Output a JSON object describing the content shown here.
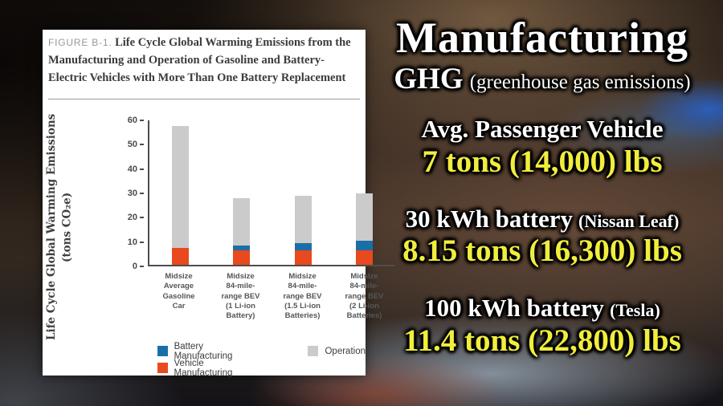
{
  "figure_card": {
    "figure_label": "FIGURE B-1.",
    "title": "Life Cycle Global Warming Emissions from the Manufacturing and Operation of Gasoline and Battery-Electric Vehicles with More Than One Battery Replacement"
  },
  "chart_data": {
    "type": "bar",
    "stacked": true,
    "ylabel_line1": "Life Cycle Global Warming Emissions",
    "ylabel_line2": "(tons CO₂e)",
    "ylim": [
      0,
      60
    ],
    "yticks": [
      60,
      50,
      40,
      30,
      20,
      10,
      0
    ],
    "grid": false,
    "legend_position": "bottom",
    "categories": [
      "Midsize Average Gasoline Car",
      "Midsize 84-mile-range BEV (1 Li-ion Battery)",
      "Midsize 84-mile-range BEV (1.5 Li-ion Batteries)",
      "Midsize 84-mile-range BEV (2 Li-ion Batteries)"
    ],
    "category_lines": [
      [
        "Midsize",
        "Average",
        "Gasoline",
        "Car"
      ],
      [
        "Midsize",
        "84-mile-",
        "range BEV",
        "(1 Li-ion",
        "Battery)"
      ],
      [
        "Midsize",
        "84-mile-",
        "range BEV",
        "(1.5 Li-ion",
        "Batteries)"
      ],
      [
        "Midsize",
        "84-mile-",
        "range BEV",
        "(2 Li-ion",
        "Batteries)"
      ]
    ],
    "series": [
      {
        "name": "Vehicle Manufacturing",
        "color": "#e8491e",
        "values": [
          7,
          6,
          6,
          6
        ]
      },
      {
        "name": "Battery Manufacturing",
        "color": "#1b6fa8",
        "values": [
          0,
          2,
          3,
          4
        ]
      },
      {
        "name": "Operation",
        "color": "#cbcbcb",
        "values": [
          50,
          19.5,
          19.5,
          19.5
        ]
      }
    ],
    "totals": [
      57,
      27.5,
      28.5,
      29.5
    ],
    "legend": [
      {
        "name": "Battery Manufacturing",
        "color": "#1b6fa8"
      },
      {
        "name": "Vehicle Manufacturing",
        "color": "#e8491e"
      },
      {
        "name": "Operation",
        "color": "#cbcbcb"
      }
    ]
  },
  "overlay": {
    "heading": "Manufacturing",
    "subheading": "GHG",
    "subheading_note": "(greenhouse gas emissions)",
    "text_color": "#ffffff",
    "value_color": "#f1ed3d",
    "entries": [
      {
        "label": "Avg. Passenger Vehicle",
        "note": "",
        "value": "7 tons (14,000) lbs"
      },
      {
        "label": "30 kWh battery",
        "note": "(Nissan Leaf)",
        "value": "8.15 tons (16,300) lbs"
      },
      {
        "label": "100 kWh battery",
        "note": "(Tesla)",
        "value": "11.4 tons (22,800) lbs"
      }
    ]
  }
}
